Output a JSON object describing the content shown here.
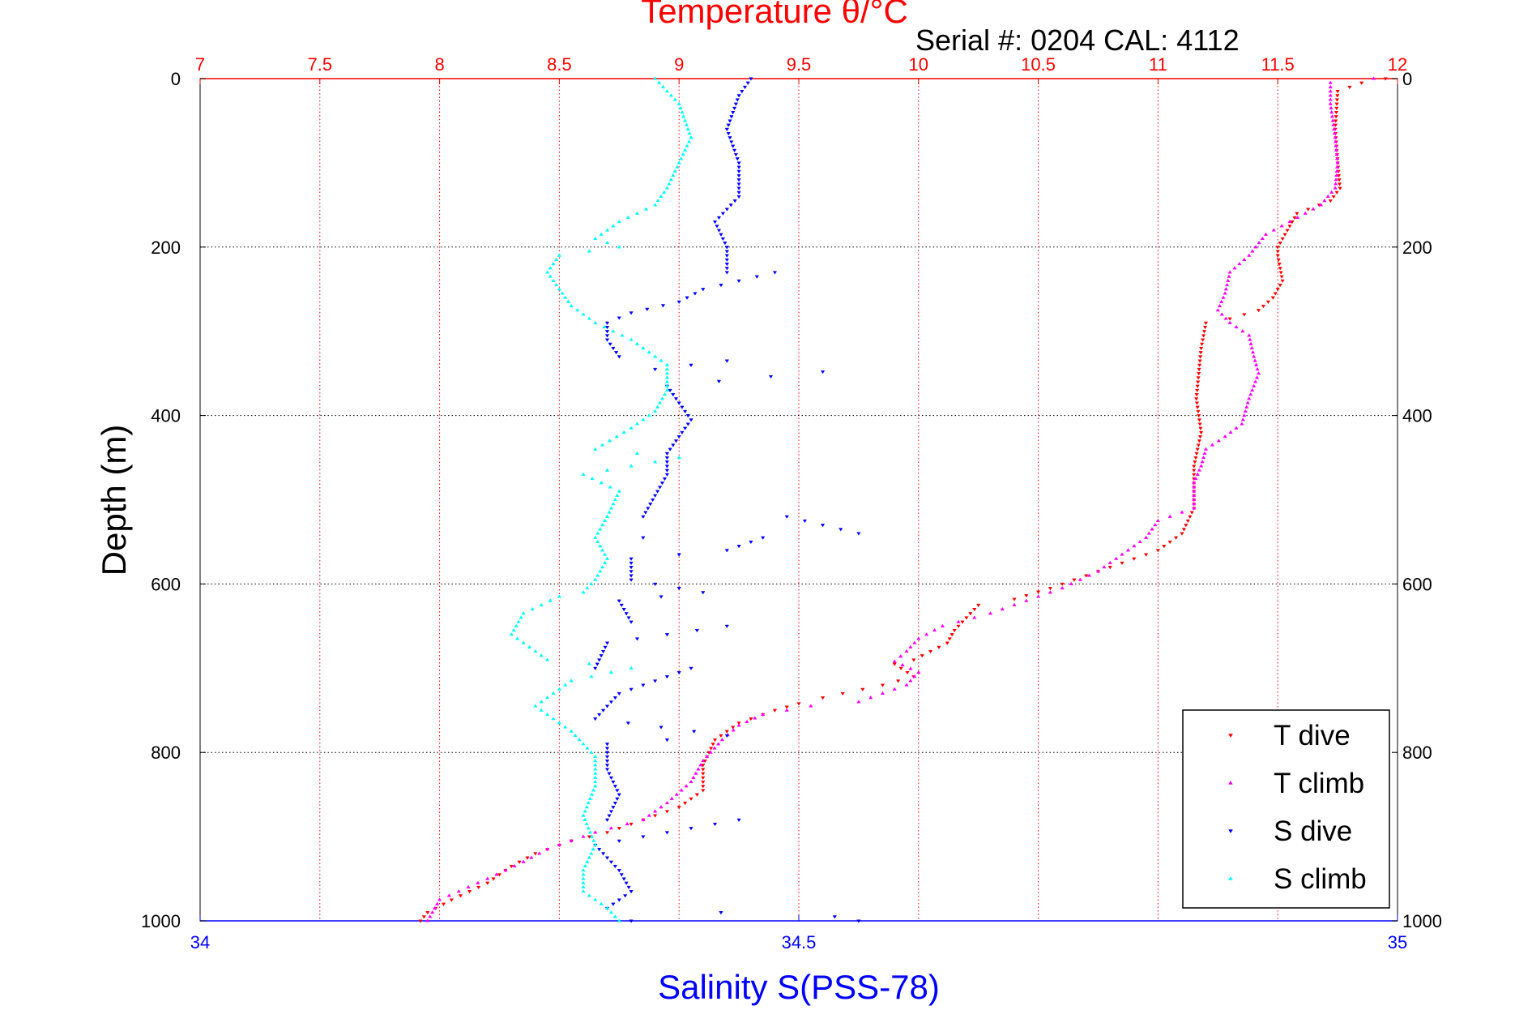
{
  "chart_data": {
    "type": "scatter",
    "title": "Temperature θ/°C",
    "xlabel": "Salinity S(PSS-78)",
    "ylabel": "Depth (m)",
    "annotation": "Serial #: 0204  CAL: 4112",
    "top_axis": {
      "label": "Temperature θ/°C",
      "range": [
        7,
        12
      ],
      "ticks": [
        "7",
        "7.5",
        "8",
        "8.5",
        "9",
        "9.5",
        "10",
        "10.5",
        "11",
        "11.5",
        "12"
      ],
      "color": "#ff0000"
    },
    "bottom_axis": {
      "label": "Salinity S(PSS-78)",
      "range": [
        34,
        35
      ],
      "ticks": [
        "34",
        "34.5",
        "35"
      ],
      "color": "#0000ff"
    },
    "y_axis": {
      "range": [
        0,
        1000
      ],
      "reversed": true,
      "ticks": [
        "0",
        "200",
        "400",
        "600",
        "800",
        "1000"
      ]
    },
    "grid": true,
    "legend_position": "bottom-right",
    "series": [
      {
        "name": "T dive",
        "axis": "temperature",
        "color": "#ff0000",
        "marker": "triangle-down",
        "points": [
          [
            11.95,
            0
          ],
          [
            11.85,
            5
          ],
          [
            11.75,
            15
          ],
          [
            11.74,
            60
          ],
          [
            11.75,
            100
          ],
          [
            11.76,
            130
          ],
          [
            11.72,
            145
          ],
          [
            11.58,
            160
          ],
          [
            11.55,
            175
          ],
          [
            11.5,
            200
          ],
          [
            11.5,
            210
          ],
          [
            11.52,
            240
          ],
          [
            11.48,
            260
          ],
          [
            11.42,
            275
          ],
          [
            11.3,
            285
          ],
          [
            11.2,
            290
          ],
          [
            11.18,
            320
          ],
          [
            11.16,
            380
          ],
          [
            11.18,
            420
          ],
          [
            11.15,
            460
          ],
          [
            11.15,
            510
          ],
          [
            11.1,
            540
          ],
          [
            11.0,
            560
          ],
          [
            10.85,
            575
          ],
          [
            10.7,
            590
          ],
          [
            10.55,
            605
          ],
          [
            10.4,
            618
          ],
          [
            10.25,
            625
          ],
          [
            10.2,
            640
          ],
          [
            10.15,
            655
          ],
          [
            10.12,
            670
          ],
          [
            10.05,
            680
          ],
          [
            9.98,
            690
          ],
          [
            9.9,
            695
          ],
          [
            9.98,
            710
          ],
          [
            9.85,
            720
          ],
          [
            9.6,
            735
          ],
          [
            9.5,
            742
          ],
          [
            9.4,
            750
          ],
          [
            9.25,
            765
          ],
          [
            9.15,
            785
          ],
          [
            9.1,
            815
          ],
          [
            9.1,
            845
          ],
          [
            9.0,
            865
          ],
          [
            8.85,
            880
          ],
          [
            8.7,
            895
          ],
          [
            8.55,
            905
          ],
          [
            8.4,
            920
          ],
          [
            8.3,
            935
          ],
          [
            8.2,
            955
          ],
          [
            8.05,
            975
          ],
          [
            7.95,
            990
          ],
          [
            7.92,
            1000
          ]
        ]
      },
      {
        "name": "T climb",
        "axis": "temperature",
        "color": "#ff00ff",
        "marker": "triangle-up",
        "points": [
          [
            11.9,
            0
          ],
          [
            11.72,
            5
          ],
          [
            11.72,
            30
          ],
          [
            11.74,
            70
          ],
          [
            11.75,
            100
          ],
          [
            11.74,
            130
          ],
          [
            11.68,
            150
          ],
          [
            11.55,
            170
          ],
          [
            11.45,
            185
          ],
          [
            11.38,
            210
          ],
          [
            11.3,
            230
          ],
          [
            11.28,
            255
          ],
          [
            11.25,
            275
          ],
          [
            11.3,
            290
          ],
          [
            11.38,
            305
          ],
          [
            11.4,
            330
          ],
          [
            11.42,
            350
          ],
          [
            11.38,
            380
          ],
          [
            11.35,
            410
          ],
          [
            11.28,
            425
          ],
          [
            11.2,
            440
          ],
          [
            11.18,
            460
          ],
          [
            11.15,
            480
          ],
          [
            11.15,
            510
          ],
          [
            11.0,
            525
          ],
          [
            10.95,
            545
          ],
          [
            10.85,
            565
          ],
          [
            10.75,
            585
          ],
          [
            10.6,
            605
          ],
          [
            10.45,
            620
          ],
          [
            10.3,
            635
          ],
          [
            10.1,
            650
          ],
          [
            10.0,
            665
          ],
          [
            9.95,
            680
          ],
          [
            9.9,
            692
          ],
          [
            10.0,
            705
          ],
          [
            9.95,
            720
          ],
          [
            9.75,
            740
          ],
          [
            9.55,
            745
          ],
          [
            9.35,
            755
          ],
          [
            9.25,
            768
          ],
          [
            9.18,
            785
          ],
          [
            9.1,
            810
          ],
          [
            9.05,
            835
          ],
          [
            8.95,
            860
          ],
          [
            8.85,
            880
          ],
          [
            8.65,
            895
          ],
          [
            8.45,
            915
          ],
          [
            8.35,
            930
          ],
          [
            8.2,
            950
          ],
          [
            8.0,
            975
          ],
          [
            7.95,
            1000
          ]
        ]
      },
      {
        "name": "S dive",
        "axis": "salinity",
        "color": "#0000ff",
        "marker": "triangle-down",
        "points": [
          [
            34.46,
            0
          ],
          [
            34.45,
            20
          ],
          [
            34.44,
            60
          ],
          [
            34.45,
            100
          ],
          [
            34.45,
            140
          ],
          [
            34.43,
            170
          ],
          [
            34.44,
            200
          ],
          [
            34.44,
            230
          ],
          [
            34.42,
            250
          ],
          [
            34.4,
            265
          ],
          [
            34.36,
            278
          ],
          [
            34.34,
            290
          ],
          [
            34.34,
            310
          ],
          [
            34.35,
            330
          ],
          [
            34.38,
            345
          ],
          [
            34.39,
            365
          ],
          [
            34.4,
            385
          ],
          [
            34.41,
            405
          ],
          [
            34.4,
            425
          ],
          [
            34.39,
            445
          ],
          [
            34.39,
            470
          ],
          [
            34.38,
            495
          ],
          [
            34.37,
            520
          ],
          [
            34.37,
            545
          ],
          [
            34.36,
            570
          ],
          [
            34.36,
            595
          ],
          [
            34.35,
            620
          ],
          [
            34.36,
            645
          ],
          [
            34.34,
            670
          ],
          [
            34.33,
            700
          ],
          [
            34.35,
            730
          ],
          [
            34.33,
            760
          ],
          [
            34.34,
            790
          ],
          [
            34.34,
            820
          ],
          [
            34.35,
            850
          ],
          [
            34.34,
            880
          ],
          [
            34.33,
            910
          ],
          [
            34.35,
            940
          ],
          [
            34.36,
            965
          ],
          [
            34.34,
            985
          ],
          [
            34.36,
            1000
          ],
          [
            34.48,
            230
          ],
          [
            34.52,
            348
          ],
          [
            34.44,
            335
          ],
          [
            34.55,
            540
          ],
          [
            34.49,
            520
          ],
          [
            34.47,
            545
          ],
          [
            34.44,
            560
          ],
          [
            34.42,
            610
          ],
          [
            34.44,
            650
          ],
          [
            34.41,
            700
          ],
          [
            34.44,
            780
          ],
          [
            34.45,
            880
          ],
          [
            34.53,
            995
          ],
          [
            34.55,
            1000
          ]
        ]
      },
      {
        "name": "S climb",
        "axis": "salinity",
        "color": "#00ffff",
        "marker": "triangle-up",
        "points": [
          [
            34.38,
            0
          ],
          [
            34.4,
            30
          ],
          [
            34.41,
            70
          ],
          [
            34.4,
            100
          ],
          [
            34.39,
            130
          ],
          [
            34.38,
            150
          ],
          [
            34.35,
            170
          ],
          [
            34.33,
            190
          ],
          [
            34.3,
            210
          ],
          [
            34.29,
            230
          ],
          [
            34.3,
            250
          ],
          [
            34.31,
            270
          ],
          [
            34.33,
            290
          ],
          [
            34.36,
            310
          ],
          [
            34.39,
            340
          ],
          [
            34.39,
            370
          ],
          [
            34.38,
            395
          ],
          [
            34.36,
            415
          ],
          [
            34.33,
            440
          ],
          [
            34.32,
            470
          ],
          [
            34.35,
            490
          ],
          [
            34.34,
            520
          ],
          [
            34.33,
            545
          ],
          [
            34.34,
            570
          ],
          [
            34.33,
            595
          ],
          [
            34.3,
            615
          ],
          [
            34.27,
            635
          ],
          [
            34.26,
            660
          ],
          [
            34.29,
            690
          ],
          [
            34.31,
            715
          ],
          [
            34.28,
            745
          ],
          [
            34.31,
            775
          ],
          [
            34.33,
            805
          ],
          [
            34.33,
            840
          ],
          [
            34.32,
            875
          ],
          [
            34.33,
            910
          ],
          [
            34.32,
            940
          ],
          [
            34.32,
            965
          ],
          [
            34.34,
            985
          ],
          [
            34.35,
            1000
          ],
          [
            34.35,
            200
          ],
          [
            34.41,
            70
          ],
          [
            34.32,
            610
          ],
          [
            34.4,
            450
          ],
          [
            34.36,
            700
          ]
        ]
      }
    ]
  }
}
